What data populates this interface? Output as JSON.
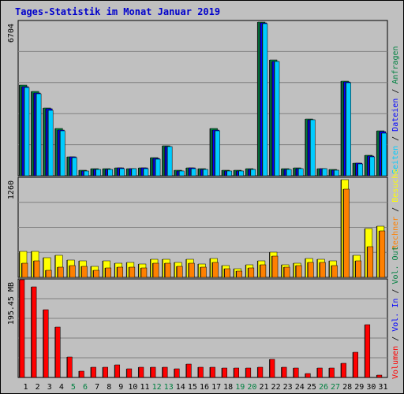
{
  "title": "Tages-Statistik im Monat Januar 2019",
  "colors": {
    "background": "#c0c0c0",
    "title": "#0000cc",
    "weekday": "#000000",
    "weekend": "#008040",
    "anfragen": "#008040",
    "dateien": "#0000ff",
    "seiten": "#00ccff",
    "besuche": "#ffff00",
    "rechner": "#ff8000",
    "volumen": "#ff0000",
    "vol_in": "#0000ff",
    "vol_out": "#008040"
  },
  "right_labels": {
    "anfragen": "Anfragen",
    "dateien": "Dateien",
    "seiten": "Seiten",
    "besuche": "Besuche",
    "rechner": "Rechner",
    "vol_out": "Vol. Out",
    "vol_in": "Vol. In",
    "volumen": "Volumen",
    "sep": "/"
  },
  "chart_data": [
    {
      "type": "bar",
      "name": "hits-panel",
      "ymax_label": "6704",
      "ylim": [
        0,
        6704
      ],
      "categories": [
        "1",
        "2",
        "3",
        "4",
        "5",
        "6",
        "7",
        "8",
        "9",
        "10",
        "11",
        "12",
        "13",
        "14",
        "15",
        "16",
        "17",
        "18",
        "19",
        "20",
        "21",
        "22",
        "23",
        "24",
        "25",
        "26",
        "27",
        "28",
        "29",
        "30",
        "31"
      ],
      "weekend_days": [
        "5",
        "6",
        "12",
        "13",
        "19",
        "20",
        "26",
        "27"
      ],
      "series": [
        {
          "name": "Anfragen",
          "values": [
            3900,
            3630,
            2930,
            2030,
            830,
            230,
            300,
            300,
            350,
            320,
            350,
            780,
            1300,
            230,
            350,
            300,
            2030,
            240,
            240,
            300,
            6640,
            4990,
            300,
            330,
            2450,
            320,
            270,
            4080,
            550,
            870,
            1930
          ]
        },
        {
          "name": "Dateien",
          "values": [
            3850,
            3580,
            2880,
            1980,
            800,
            210,
            280,
            280,
            330,
            300,
            330,
            750,
            1270,
            210,
            330,
            280,
            1980,
            220,
            220,
            280,
            6600,
            4950,
            280,
            310,
            2420,
            300,
            250,
            4040,
            530,
            850,
            1890
          ]
        },
        {
          "name": "Seiten",
          "values": [
            3800,
            3530,
            2830,
            1930,
            780,
            200,
            270,
            270,
            320,
            290,
            320,
            730,
            1250,
            200,
            320,
            270,
            1930,
            210,
            210,
            270,
            6580,
            4920,
            270,
            300,
            2400,
            290,
            240,
            4000,
            520,
            830,
            1850
          ]
        }
      ]
    },
    {
      "type": "bar",
      "name": "visits-panel",
      "ymax_label": "1260",
      "ylim": [
        0,
        1260
      ],
      "categories": [
        "1",
        "2",
        "3",
        "4",
        "5",
        "6",
        "7",
        "8",
        "9",
        "10",
        "11",
        "12",
        "13",
        "14",
        "15",
        "16",
        "17",
        "18",
        "19",
        "20",
        "21",
        "22",
        "23",
        "24",
        "25",
        "26",
        "27",
        "28",
        "29",
        "30",
        "31"
      ],
      "series": [
        {
          "name": "Besuche",
          "values": [
            330,
            330,
            250,
            280,
            220,
            210,
            140,
            210,
            180,
            190,
            170,
            230,
            230,
            190,
            230,
            170,
            240,
            150,
            110,
            160,
            210,
            320,
            160,
            180,
            240,
            230,
            210,
            1230,
            280,
            620,
            640
          ]
        },
        {
          "name": "Rechner",
          "values": [
            180,
            210,
            90,
            130,
            150,
            140,
            90,
            120,
            130,
            130,
            120,
            180,
            180,
            140,
            180,
            130,
            190,
            110,
            80,
            120,
            160,
            270,
            130,
            150,
            190,
            190,
            150,
            1110,
            210,
            390,
            590
          ]
        }
      ]
    },
    {
      "type": "bar",
      "name": "volume-panel",
      "ymax_label": "195.45 MB",
      "ylim": [
        0,
        195.45
      ],
      "categories": [
        "1",
        "2",
        "3",
        "4",
        "5",
        "6",
        "7",
        "8",
        "9",
        "10",
        "11",
        "12",
        "13",
        "14",
        "15",
        "16",
        "17",
        "18",
        "19",
        "20",
        "21",
        "22",
        "23",
        "24",
        "25",
        "26",
        "27",
        "28",
        "29",
        "30",
        "31"
      ],
      "series": [
        {
          "name": "Volumen",
          "values": [
            193.5,
            180.5,
            134.5,
            100.5,
            40.5,
            12.5,
            20.5,
            20.5,
            24.5,
            16.5,
            20.5,
            20.5,
            20.5,
            16.5,
            26.5,
            20.5,
            20.5,
            18.5,
            18.5,
            18.5,
            20.5,
            36.5,
            20.5,
            18.5,
            8.5,
            18.5,
            18.5,
            28.5,
            50.5,
            104.5,
            4.5
          ]
        }
      ]
    }
  ]
}
